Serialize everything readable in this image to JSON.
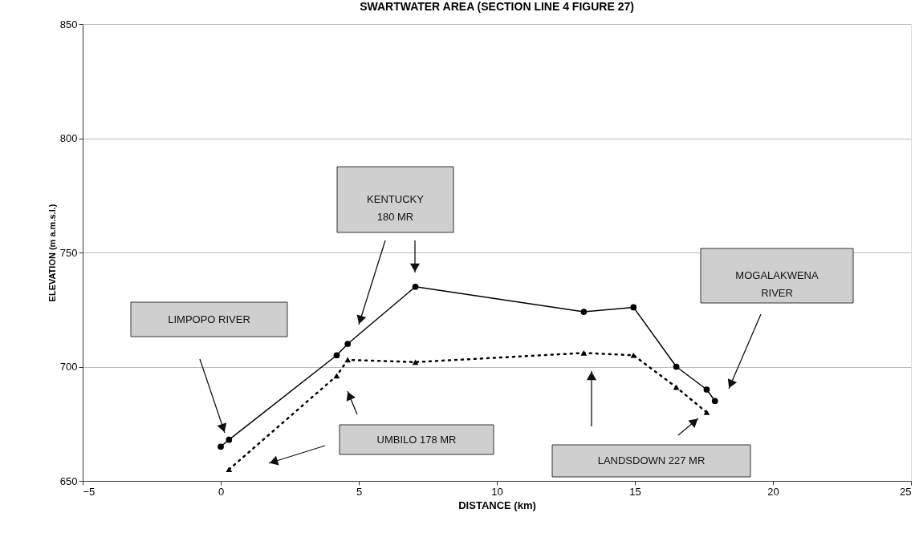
{
  "chart_data": {
    "type": "line",
    "title": "SWARTWATER AREA (SECTION LINE 4 FIGURE 27)",
    "xlabel": "DISTANCE (km)",
    "ylabel": "ELEVATION (m a.m.s.l.)",
    "series": [
      {
        "color": "#000000",
        "marker": "circle",
        "line_style": "solid",
        "x": [
          0,
          0.3,
          4.2,
          4.6,
          7.05,
          13.15,
          14.95,
          16.5,
          17.6,
          17.9
        ],
        "values": [
          665,
          668,
          705,
          710,
          735,
          724,
          726,
          700,
          690,
          685
        ]
      },
      {
        "color": "#000000",
        "marker": "triangle",
        "line_style": "dotted",
        "x": [
          0.3,
          4.2,
          4.6,
          7.05,
          13.15,
          14.95,
          16.5,
          17.6
        ],
        "values": [
          655,
          696,
          703,
          702,
          706,
          705,
          691,
          680
        ]
      }
    ],
    "xlim": [
      -5,
      25
    ],
    "xticks": [
      -5,
      0,
      5,
      10,
      15,
      20,
      25
    ],
    "ylim": [
      650,
      850
    ],
    "yticks": [
      650,
      700,
      750,
      800,
      850
    ],
    "grid": "y",
    "annotations": [
      "KENTUCKY\n180 MR",
      "LIMPOPO RIVER",
      "MOGALAKWENA\nRIVER",
      "UMBILO 178 MR",
      "LANDSDOWN 227 MR"
    ]
  }
}
